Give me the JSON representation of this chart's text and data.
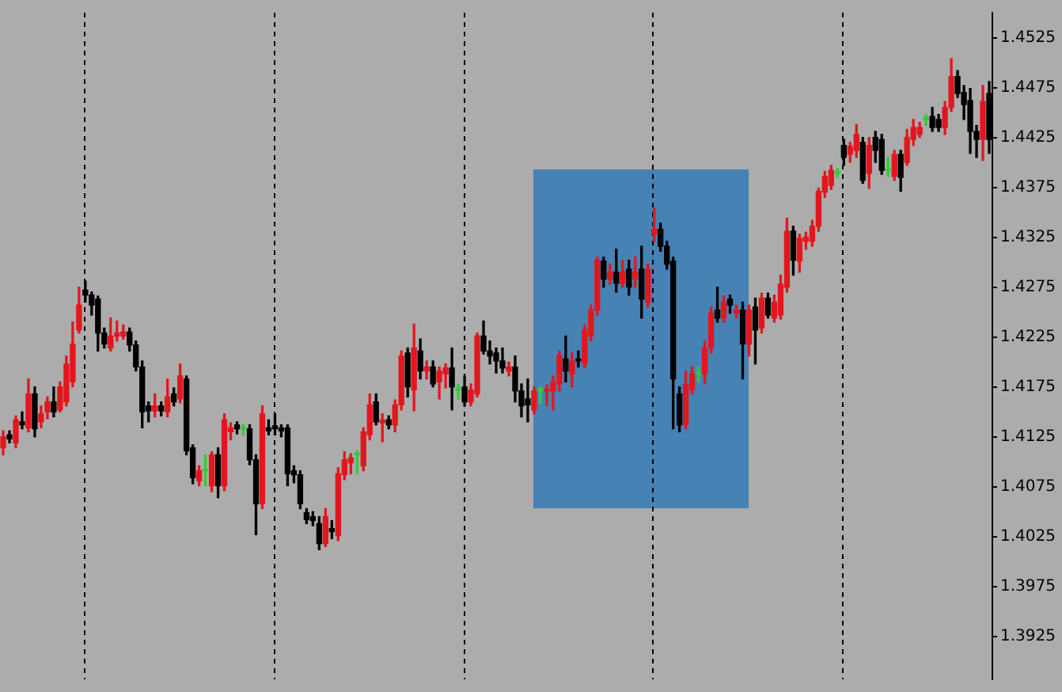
{
  "chart_data": {
    "type": "candlestick",
    "tick_labels": "y",
    "categories": [
      null,
      null,
      null,
      null,
      null,
      null,
      null,
      null,
      null,
      null,
      null,
      null,
      null,
      null,
      null,
      null,
      null,
      null,
      null,
      null,
      null,
      null,
      null,
      null,
      null,
      null,
      null,
      null,
      null,
      null,
      null,
      null,
      null,
      null,
      null,
      null,
      null,
      null,
      null,
      null,
      null,
      null,
      null,
      null,
      null,
      null,
      null,
      null,
      null,
      null,
      null,
      null,
      null,
      null,
      null,
      null,
      null,
      null,
      null,
      null,
      null,
      null,
      null,
      null,
      null,
      null,
      null,
      null,
      null,
      null,
      null,
      null,
      null,
      null,
      null,
      null,
      null,
      null,
      null,
      null,
      null,
      null,
      null,
      null,
      null,
      null,
      null,
      null,
      null,
      null,
      null,
      null,
      null,
      null,
      null,
      null,
      null,
      null,
      null,
      null,
      null,
      null,
      null,
      null,
      null,
      null,
      null,
      null,
      null,
      null,
      null,
      null,
      null,
      null,
      null,
      null,
      null,
      null,
      null,
      null,
      null,
      null,
      null,
      null,
      null,
      null,
      null,
      null,
      null,
      null,
      null,
      null,
      null,
      null,
      null,
      null,
      null,
      null,
      null,
      null,
      null,
      null,
      null,
      null,
      null,
      null,
      null,
      null,
      null,
      null,
      null,
      null,
      null,
      null,
      null,
      null,
      null
    ],
    "ohlc": [
      [
        1.4114,
        1.4131,
        1.4107,
        1.4125
      ],
      [
        1.4127,
        1.4131,
        1.4119,
        1.4123
      ],
      [
        1.4119,
        1.4146,
        1.4114,
        1.4142
      ],
      [
        1.414,
        1.415,
        1.4133,
        1.4137
      ],
      [
        1.4134,
        1.4183,
        1.413,
        1.4168
      ],
      [
        1.4168,
        1.4175,
        1.4125,
        1.4133
      ],
      [
        1.414,
        1.4156,
        1.4134,
        1.4148
      ],
      [
        1.415,
        1.4165,
        1.4143,
        1.416
      ],
      [
        1.416,
        1.4175,
        1.4145,
        1.415
      ],
      [
        1.4152,
        1.418,
        1.415,
        1.4175
      ],
      [
        1.416,
        1.4206,
        1.4156,
        1.4198
      ],
      [
        1.418,
        1.424,
        1.4175,
        1.4218
      ],
      [
        1.4232,
        1.4275,
        1.4229,
        1.4257
      ],
      [
        1.4272,
        1.4281,
        1.426,
        1.4267
      ],
      [
        1.4267,
        1.427,
        1.4247,
        1.4257
      ],
      [
        1.4263,
        1.4266,
        1.4211,
        1.4229
      ],
      [
        1.4229,
        1.4234,
        1.4214,
        1.4218
      ],
      [
        1.4214,
        1.4244,
        1.4211,
        1.4226
      ],
      [
        1.4226,
        1.4241,
        1.4221,
        1.4229
      ],
      [
        1.4226,
        1.4237,
        1.4223,
        1.423
      ],
      [
        1.423,
        1.4234,
        1.4211,
        1.4217
      ],
      [
        1.4217,
        1.4221,
        1.4191,
        1.4195
      ],
      [
        1.4195,
        1.4201,
        1.4134,
        1.415
      ],
      [
        1.4156,
        1.416,
        1.414,
        1.4151
      ],
      [
        1.4151,
        1.4168,
        1.4145,
        1.4156
      ],
      [
        1.4156,
        1.416,
        1.4146,
        1.4151
      ],
      [
        1.415,
        1.4183,
        1.4145,
        1.4165
      ],
      [
        1.4168,
        1.4174,
        1.4156,
        1.416
      ],
      [
        1.4163,
        1.4198,
        1.4159,
        1.4186
      ],
      [
        1.4183,
        1.4186,
        1.4107,
        1.4111
      ],
      [
        1.4114,
        1.4117,
        1.4078,
        1.4084
      ],
      [
        1.4081,
        1.4096,
        1.4076,
        1.4091
      ],
      [
        1.4091,
        1.4107,
        1.4076,
        1.4091
      ],
      [
        1.4076,
        1.411,
        1.407,
        1.4107
      ],
      [
        1.4107,
        1.4114,
        1.4064,
        1.4076
      ],
      [
        1.4076,
        1.4148,
        1.4071,
        1.4142
      ],
      [
        1.413,
        1.4139,
        1.4122,
        1.4134
      ],
      [
        1.4137,
        1.414,
        1.4128,
        1.4133
      ],
      [
        1.4133,
        1.4137,
        1.4127,
        1.4133
      ],
      [
        1.4133,
        1.4137,
        1.4097,
        1.4102
      ],
      [
        1.4102,
        1.4107,
        1.4027,
        1.4058
      ],
      [
        1.4058,
        1.4156,
        1.4053,
        1.4148
      ],
      [
        1.4134,
        1.4142,
        1.4127,
        1.4131
      ],
      [
        1.4136,
        1.4148,
        1.4127,
        1.4133
      ],
      [
        1.4134,
        1.4137,
        1.4125,
        1.4131
      ],
      [
        1.4134,
        1.4137,
        1.4076,
        1.4088
      ],
      [
        1.4091,
        1.4096,
        1.4079,
        1.4087
      ],
      [
        1.4087,
        1.4091,
        1.4053,
        1.4058
      ],
      [
        1.4049,
        1.4053,
        1.4038,
        1.4042
      ],
      [
        1.4045,
        1.405,
        1.4036,
        1.4041
      ],
      [
        1.4038,
        1.4045,
        1.4012,
        1.4018
      ],
      [
        1.4018,
        1.4053,
        1.4015,
        1.4045
      ],
      [
        1.4033,
        1.4041,
        1.4023,
        1.403
      ],
      [
        1.4026,
        1.4094,
        1.4021,
        1.4088
      ],
      [
        1.4087,
        1.411,
        1.4082,
        1.4102
      ],
      [
        1.4099,
        1.4108,
        1.4088,
        1.4104
      ],
      [
        1.4107,
        1.4111,
        1.4088,
        1.4107
      ],
      [
        1.4096,
        1.4134,
        1.4091,
        1.413
      ],
      [
        1.4127,
        1.4168,
        1.4122,
        1.4157
      ],
      [
        1.416,
        1.4168,
        1.4137,
        1.414
      ],
      [
        1.4139,
        1.4148,
        1.412,
        1.4142
      ],
      [
        1.4142,
        1.4146,
        1.4133,
        1.4137
      ],
      [
        1.4137,
        1.4162,
        1.413,
        1.4157
      ],
      [
        1.4157,
        1.4211,
        1.4152,
        1.4206
      ],
      [
        1.4209,
        1.4214,
        1.4165,
        1.4175
      ],
      [
        1.4172,
        1.4238,
        1.4151,
        1.4214
      ],
      [
        1.4211,
        1.4223,
        1.4183,
        1.4191
      ],
      [
        1.4191,
        1.4201,
        1.4183,
        1.4195
      ],
      [
        1.4195,
        1.4201,
        1.4175,
        1.4178
      ],
      [
        1.418,
        1.4195,
        1.4163,
        1.4191
      ],
      [
        1.4188,
        1.4198,
        1.4174,
        1.4194
      ],
      [
        1.4194,
        1.4214,
        1.4152,
        1.4175
      ],
      [
        1.4172,
        1.4178,
        1.4163,
        1.4172
      ],
      [
        1.4175,
        1.4186,
        1.4156,
        1.416
      ],
      [
        1.416,
        1.4178,
        1.4156,
        1.4172
      ],
      [
        1.4168,
        1.4229,
        1.4165,
        1.4226
      ],
      [
        1.4226,
        1.4241,
        1.4208,
        1.4211
      ],
      [
        1.4211,
        1.4221,
        1.4198,
        1.4206
      ],
      [
        1.4209,
        1.4214,
        1.4189,
        1.4201
      ],
      [
        1.4201,
        1.4214,
        1.4189,
        1.4194
      ],
      [
        1.4191,
        1.42,
        1.4186,
        1.4195
      ],
      [
        1.4195,
        1.4206,
        1.416,
        1.4171
      ],
      [
        1.4171,
        1.4178,
        1.4145,
        1.4156
      ],
      [
        1.4163,
        1.4183,
        1.414,
        1.4157
      ],
      [
        1.4152,
        1.4175,
        1.4148,
        1.4171
      ],
      [
        1.4171,
        1.4175,
        1.4159,
        1.4171
      ],
      [
        1.4171,
        1.4177,
        1.4156,
        1.4172
      ],
      [
        1.4171,
        1.4186,
        1.4152,
        1.418
      ],
      [
        1.4178,
        1.4211,
        1.4171,
        1.4206
      ],
      [
        1.4203,
        1.4226,
        1.418,
        1.4191
      ],
      [
        1.4188,
        1.4209,
        1.4175,
        1.4201
      ],
      [
        1.4203,
        1.4211,
        1.4195,
        1.4201
      ],
      [
        1.4198,
        1.4237,
        1.4194,
        1.4232
      ],
      [
        1.4226,
        1.4257,
        1.4221,
        1.4252
      ],
      [
        1.4252,
        1.4305,
        1.4247,
        1.4302
      ],
      [
        1.4301,
        1.4305,
        1.4275,
        1.4283
      ],
      [
        1.4283,
        1.4298,
        1.4278,
        1.429
      ],
      [
        1.429,
        1.4313,
        1.427,
        1.4279
      ],
      [
        1.4279,
        1.4302,
        1.4275,
        1.429
      ],
      [
        1.4293,
        1.4302,
        1.4267,
        1.4275
      ],
      [
        1.4283,
        1.4305,
        1.4275,
        1.429
      ],
      [
        1.4293,
        1.4316,
        1.4244,
        1.4263
      ],
      [
        1.426,
        1.4298,
        1.4255,
        1.4293
      ],
      [
        1.4328,
        1.4354,
        1.4321,
        1.4333
      ],
      [
        1.4333,
        1.4339,
        1.4311,
        1.4316
      ],
      [
        1.4316,
        1.4321,
        1.4293,
        1.4298
      ],
      [
        1.4301,
        1.4305,
        1.4133,
        1.4183
      ],
      [
        1.4168,
        1.4175,
        1.413,
        1.4137
      ],
      [
        1.4137,
        1.4191,
        1.4133,
        1.4178
      ],
      [
        1.4172,
        1.4195,
        1.4168,
        1.4188
      ],
      [
        1.4188,
        1.4195,
        1.418,
        1.4188
      ],
      [
        1.4188,
        1.4221,
        1.4178,
        1.4214
      ],
      [
        1.4214,
        1.4255,
        1.4209,
        1.4249
      ],
      [
        1.4252,
        1.4275,
        1.424,
        1.4244
      ],
      [
        1.4244,
        1.4266,
        1.424,
        1.426
      ],
      [
        1.4263,
        1.4267,
        1.4249,
        1.4257
      ],
      [
        1.4249,
        1.4257,
        1.4244,
        1.4252
      ],
      [
        1.4252,
        1.426,
        1.4183,
        1.4218
      ],
      [
        1.4218,
        1.4257,
        1.4206,
        1.4252
      ],
      [
        1.4255,
        1.4264,
        1.4198,
        1.4232
      ],
      [
        1.4234,
        1.4269,
        1.4229,
        1.4264
      ],
      [
        1.4264,
        1.4269,
        1.4244,
        1.4247
      ],
      [
        1.4244,
        1.4267,
        1.424,
        1.426
      ],
      [
        1.4247,
        1.4287,
        1.4243,
        1.4278
      ],
      [
        1.4275,
        1.4344,
        1.427,
        1.4331
      ],
      [
        1.4331,
        1.4336,
        1.4287,
        1.4302
      ],
      [
        1.4301,
        1.4328,
        1.429,
        1.4324
      ],
      [
        1.4321,
        1.433,
        1.4313,
        1.4325
      ],
      [
        1.4321,
        1.4342,
        1.4316,
        1.4336
      ],
      [
        1.4336,
        1.4374,
        1.4331,
        1.4371
      ],
      [
        1.437,
        1.4391,
        1.4365,
        1.4386
      ],
      [
        1.4377,
        1.4397,
        1.4373,
        1.4392
      ],
      [
        1.4389,
        1.4394,
        1.4385,
        1.4389
      ],
      [
        1.4417,
        1.4423,
        1.4397,
        1.4405
      ],
      [
        1.4408,
        1.442,
        1.44,
        1.4416
      ],
      [
        1.4412,
        1.4438,
        1.4405,
        1.4428
      ],
      [
        1.442,
        1.4425,
        1.4379,
        1.4382
      ],
      [
        1.4389,
        1.4425,
        1.4374,
        1.4417
      ],
      [
        1.4425,
        1.4431,
        1.44,
        1.4412
      ],
      [
        1.4423,
        1.4428,
        1.4388,
        1.4392
      ],
      [
        1.4392,
        1.4405,
        1.4386,
        1.4392
      ],
      [
        1.4386,
        1.4412,
        1.4382,
        1.4408
      ],
      [
        1.4408,
        1.4412,
        1.4371,
        1.4385
      ],
      [
        1.44,
        1.4433,
        1.4397,
        1.4425
      ],
      [
        1.4423,
        1.4443,
        1.4417,
        1.4435
      ],
      [
        1.4428,
        1.444,
        1.4425,
        1.4435
      ],
      [
        1.4443,
        1.4448,
        1.4437,
        1.4443
      ],
      [
        1.4446,
        1.4455,
        1.4431,
        1.4435
      ],
      [
        1.4443,
        1.4448,
        1.4431,
        1.4435
      ],
      [
        1.4435,
        1.4461,
        1.4428,
        1.4455
      ],
      [
        1.4455,
        1.4504,
        1.4451,
        1.4486
      ],
      [
        1.4486,
        1.4492,
        1.4465,
        1.4469
      ],
      [
        1.447,
        1.4477,
        1.4443,
        1.4458
      ],
      [
        1.4462,
        1.4474,
        1.4409,
        1.4431
      ],
      [
        1.4431,
        1.4437,
        1.4405,
        1.4423
      ],
      [
        1.4423,
        1.4477,
        1.4402,
        1.4461
      ],
      [
        1.4469,
        1.4481,
        1.4409,
        1.4423
      ]
    ],
    "colors": [
      "#e3161e",
      "#000000",
      "#e3161e",
      "#000000",
      "#e3161e",
      "#000000",
      "#e3161e",
      "#e3161e",
      "#000000",
      "#e3161e",
      "#e3161e",
      "#e3161e",
      "#e3161e",
      "#000000",
      "#000000",
      "#000000",
      "#000000",
      "#e3161e",
      "#e3161e",
      "#e3161e",
      "#000000",
      "#000000",
      "#000000",
      "#000000",
      "#e3161e",
      "#000000",
      "#e3161e",
      "#000000",
      "#e3161e",
      "#000000",
      "#000000",
      "#e3161e",
      "#33cc33",
      "#e3161e",
      "#000000",
      "#e3161e",
      "#e3161e",
      "#000000",
      "#33cc33",
      "#000000",
      "#000000",
      "#e3161e",
      "#000000",
      "#000000",
      "#000000",
      "#000000",
      "#000000",
      "#000000",
      "#000000",
      "#000000",
      "#000000",
      "#e3161e",
      "#000000",
      "#e3161e",
      "#e3161e",
      "#e3161e",
      "#33cc33",
      "#e3161e",
      "#e3161e",
      "#000000",
      "#e3161e",
      "#000000",
      "#e3161e",
      "#e3161e",
      "#000000",
      "#e3161e",
      "#000000",
      "#e3161e",
      "#000000",
      "#e3161e",
      "#e3161e",
      "#000000",
      "#33cc33",
      "#000000",
      "#e3161e",
      "#e3161e",
      "#000000",
      "#000000",
      "#000000",
      "#000000",
      "#e3161e",
      "#000000",
      "#000000",
      "#000000",
      "#e3161e",
      "#33cc33",
      "#e3161e",
      "#e3161e",
      "#e3161e",
      "#000000",
      "#e3161e",
      "#000000",
      "#e3161e",
      "#e3161e",
      "#e3161e",
      "#000000",
      "#e3161e",
      "#000000",
      "#e3161e",
      "#000000",
      "#e3161e",
      "#000000",
      "#e3161e",
      "#e3161e",
      "#000000",
      "#000000",
      "#000000",
      "#000000",
      "#e3161e",
      "#e3161e",
      "#33cc33",
      "#e3161e",
      "#e3161e",
      "#000000",
      "#e3161e",
      "#000000",
      "#e3161e",
      "#000000",
      "#e3161e",
      "#000000",
      "#e3161e",
      "#000000",
      "#e3161e",
      "#e3161e",
      "#e3161e",
      "#000000",
      "#e3161e",
      "#e3161e",
      "#e3161e",
      "#e3161e",
      "#e3161e",
      "#e3161e",
      "#33cc33",
      "#000000",
      "#e3161e",
      "#e3161e",
      "#000000",
      "#e3161e",
      "#000000",
      "#000000",
      "#33cc33",
      "#e3161e",
      "#000000",
      "#e3161e",
      "#e3161e",
      "#e3161e",
      "#33cc33",
      "#000000",
      "#000000",
      "#e3161e",
      "#e3161e",
      "#000000",
      "#000000",
      "#000000",
      "#000000",
      "#e3161e",
      "#000000"
    ],
    "ylim": [
      1.3882,
      1.455
    ],
    "yticks": [
      1.3925,
      1.3975,
      1.4025,
      1.4075,
      1.4125,
      1.4175,
      1.4225,
      1.4275,
      1.4325,
      1.4375,
      1.4425,
      1.4475,
      1.4525
    ]
  }
}
